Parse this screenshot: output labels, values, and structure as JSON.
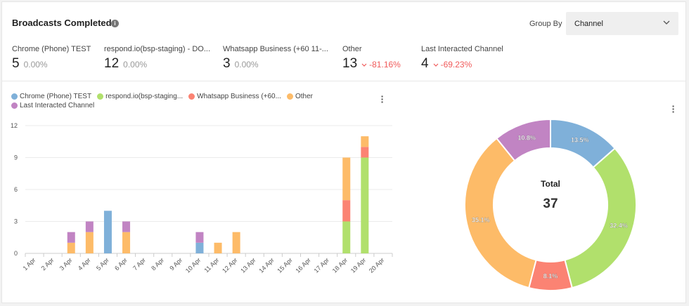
{
  "header": {
    "title": "Broadcasts Completed",
    "info_icon": "info-icon",
    "group_by_label": "Group By",
    "group_by_value": "Channel"
  },
  "stats": [
    {
      "label": "Chrome (Phone) TEST",
      "value": "5",
      "change": "0.00%",
      "trend": "flat"
    },
    {
      "label": "respond.io(bsp-staging) - DO...",
      "value": "12",
      "change": "0.00%",
      "trend": "flat"
    },
    {
      "label": "Whatsapp Business (+60 11-...",
      "value": "3",
      "change": "0.00%",
      "trend": "flat"
    },
    {
      "label": "Other",
      "value": "13",
      "change": "-81.16%",
      "trend": "down"
    },
    {
      "label": "Last Interacted Channel",
      "value": "4",
      "change": "-69.23%",
      "trend": "down"
    }
  ],
  "colors": {
    "chrome": "#7fb0d9",
    "respond": "#b1e06c",
    "whatsapp": "#fb8373",
    "other": "#fdbb68",
    "last": "#c184c3",
    "down": "#f05a5a"
  },
  "chart_data": [
    {
      "type": "bar",
      "stacked": true,
      "categories": [
        "1 Apr",
        "2 Apr",
        "3 Apr",
        "4 Apr",
        "5 Apr",
        "6 Apr",
        "7 Apr",
        "8 Apr",
        "9 Apr",
        "10 Apr",
        "11 Apr",
        "12 Apr",
        "13 Apr",
        "14 Apr",
        "15 Apr",
        "16 Apr",
        "17 Apr",
        "18 Apr",
        "19 Apr",
        "20 Apr"
      ],
      "ylim": [
        0,
        12
      ],
      "yticks": [
        0,
        3,
        6,
        9,
        12
      ],
      "grid": true,
      "legend": "top-left",
      "series": [
        {
          "name": "Chrome (Phone) TEST",
          "color": "#7fb0d9",
          "values": [
            0,
            0,
            0,
            0,
            4,
            0,
            0,
            0,
            0,
            1,
            0,
            0,
            0,
            0,
            0,
            0,
            0,
            0,
            0,
            0
          ]
        },
        {
          "name": "respond.io(bsp-staging...",
          "color": "#b1e06c",
          "values": [
            0,
            0,
            0,
            0,
            0,
            0,
            0,
            0,
            0,
            0,
            0,
            0,
            0,
            0,
            0,
            0,
            0,
            3,
            9,
            0
          ]
        },
        {
          "name": "Whatsapp Business (+60...",
          "color": "#fb8373",
          "values": [
            0,
            0,
            0,
            0,
            0,
            0,
            0,
            0,
            0,
            0,
            0,
            0,
            0,
            0,
            0,
            0,
            0,
            2,
            1,
            0
          ]
        },
        {
          "name": "Other",
          "color": "#fdbb68",
          "values": [
            0,
            0,
            1,
            2,
            0,
            2,
            0,
            0,
            0,
            0,
            1,
            2,
            0,
            0,
            0,
            0,
            0,
            4,
            1,
            0
          ]
        },
        {
          "name": "Last Interacted Channel",
          "color": "#c184c3",
          "values": [
            0,
            0,
            1,
            1,
            0,
            1,
            0,
            0,
            0,
            1,
            0,
            0,
            0,
            0,
            0,
            0,
            0,
            0,
            0,
            0
          ]
        }
      ]
    },
    {
      "type": "pie",
      "donut": true,
      "center_label": "Total",
      "center_value": "37",
      "slices": [
        {
          "name": "Chrome (Phone) TEST",
          "value": 5,
          "label": "13.5%",
          "color": "#7fb0d9"
        },
        {
          "name": "respond.io(bsp-staging...",
          "value": 12,
          "label": "32.4%",
          "color": "#b1e06c"
        },
        {
          "name": "Whatsapp Business (+60...",
          "value": 3,
          "label": "8.1%",
          "color": "#fb8373"
        },
        {
          "name": "Other",
          "value": 13,
          "label": "35.1%",
          "color": "#fdbb68"
        },
        {
          "name": "Last Interacted Channel",
          "value": 4,
          "label": "10.8%",
          "color": "#c184c3"
        }
      ]
    }
  ]
}
